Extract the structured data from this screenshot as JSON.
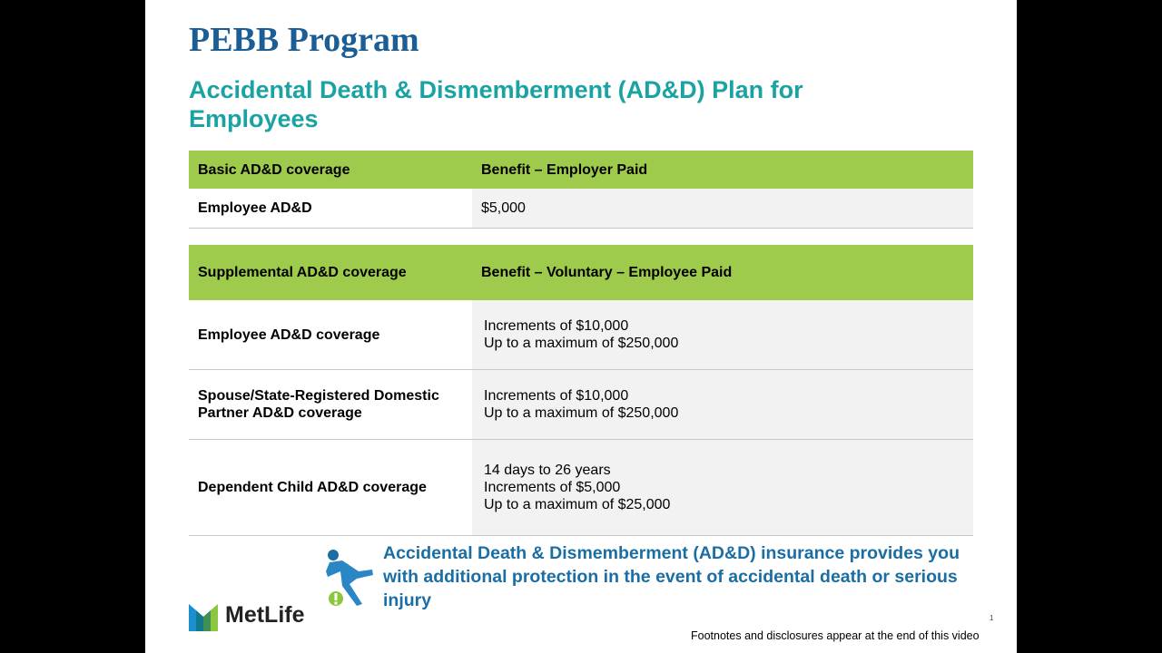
{
  "header": {
    "title": "PEBB Program",
    "subtitle": "Accidental Death & Dismemberment (AD&D) Plan for Employees"
  },
  "basic_table": {
    "header": [
      "Basic AD&D coverage",
      "Benefit – Employer Paid"
    ],
    "rows": [
      {
        "label": "Employee AD&D",
        "lines": [
          "$5,000"
        ]
      }
    ]
  },
  "supplemental_table": {
    "header": [
      "Supplemental AD&D coverage",
      "Benefit – Voluntary – Employee Paid"
    ],
    "rows": [
      {
        "label": "Employee AD&D coverage",
        "lines": [
          "Increments of $10,000",
          "Up to a maximum of $250,000"
        ]
      },
      {
        "label": "Spouse/State-Registered Domestic Partner AD&D coverage",
        "lines": [
          "Increments of $10,000",
          "Up to a maximum of $250,000"
        ]
      },
      {
        "label": "Dependent Child AD&D coverage",
        "lines": [
          "14 days to 26 years",
          "Increments of $5,000",
          "Up to a maximum of $25,000"
        ]
      }
    ]
  },
  "callout": "Accidental Death & Dismemberment (AD&D) insurance provides you with additional protection in the event of accidental death or serious injury",
  "logo": "MetLife",
  "page_number": "1",
  "footer": "Footnotes and disclosures appear at the end of this video"
}
